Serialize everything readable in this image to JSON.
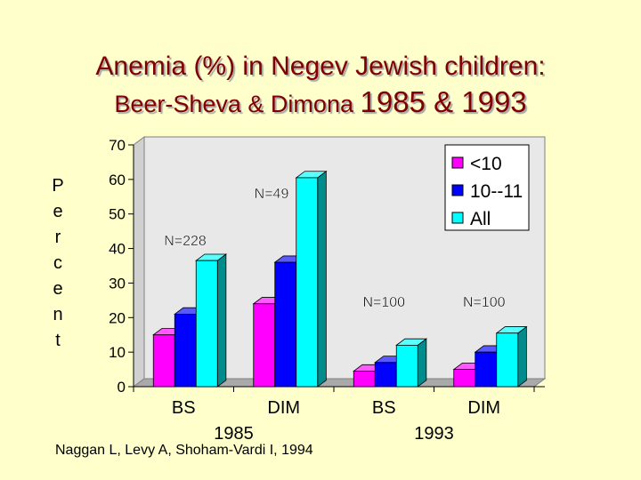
{
  "slide": {
    "title_line1": "Anemia (%) in Negev Jewish children:",
    "title_line2_prefix": "Beer-Sheva & Dimona ",
    "title_line2_years": "1985 & 1993",
    "citation": "Naggan L, Levy A, Shoham-Vardi I, 1994"
  },
  "chart_data": {
    "type": "bar",
    "title": "",
    "ylabel": "Percent",
    "xlabel": "",
    "ylim": [
      0,
      70
    ],
    "yticks": [
      0,
      10,
      20,
      30,
      40,
      50,
      60,
      70
    ],
    "categories": [
      "BS",
      "DIM",
      "BS",
      "DIM"
    ],
    "groups": [
      {
        "label": "1985",
        "categories": [
          0,
          1
        ]
      },
      {
        "label": "1993",
        "categories": [
          2,
          3
        ]
      }
    ],
    "series": [
      {
        "name": "<10",
        "color": "#ff00ff",
        "values": [
          15,
          24,
          4.5,
          5
        ]
      },
      {
        "name": "10--11",
        "color": "#0000ff",
        "values": [
          21,
          36,
          7,
          10
        ]
      },
      {
        "name": "All",
        "color": "#00ffff",
        "values": [
          36.5,
          60.5,
          12,
          15.5
        ]
      }
    ],
    "annotations": [
      {
        "text": "N=228",
        "category": 0
      },
      {
        "text": "N=49",
        "category": 1
      },
      {
        "text": "N=100",
        "category": 2
      },
      {
        "text": "N=100",
        "category": 3
      }
    ],
    "grid": false,
    "legend_position": "top-right",
    "bar_style": "3d"
  }
}
